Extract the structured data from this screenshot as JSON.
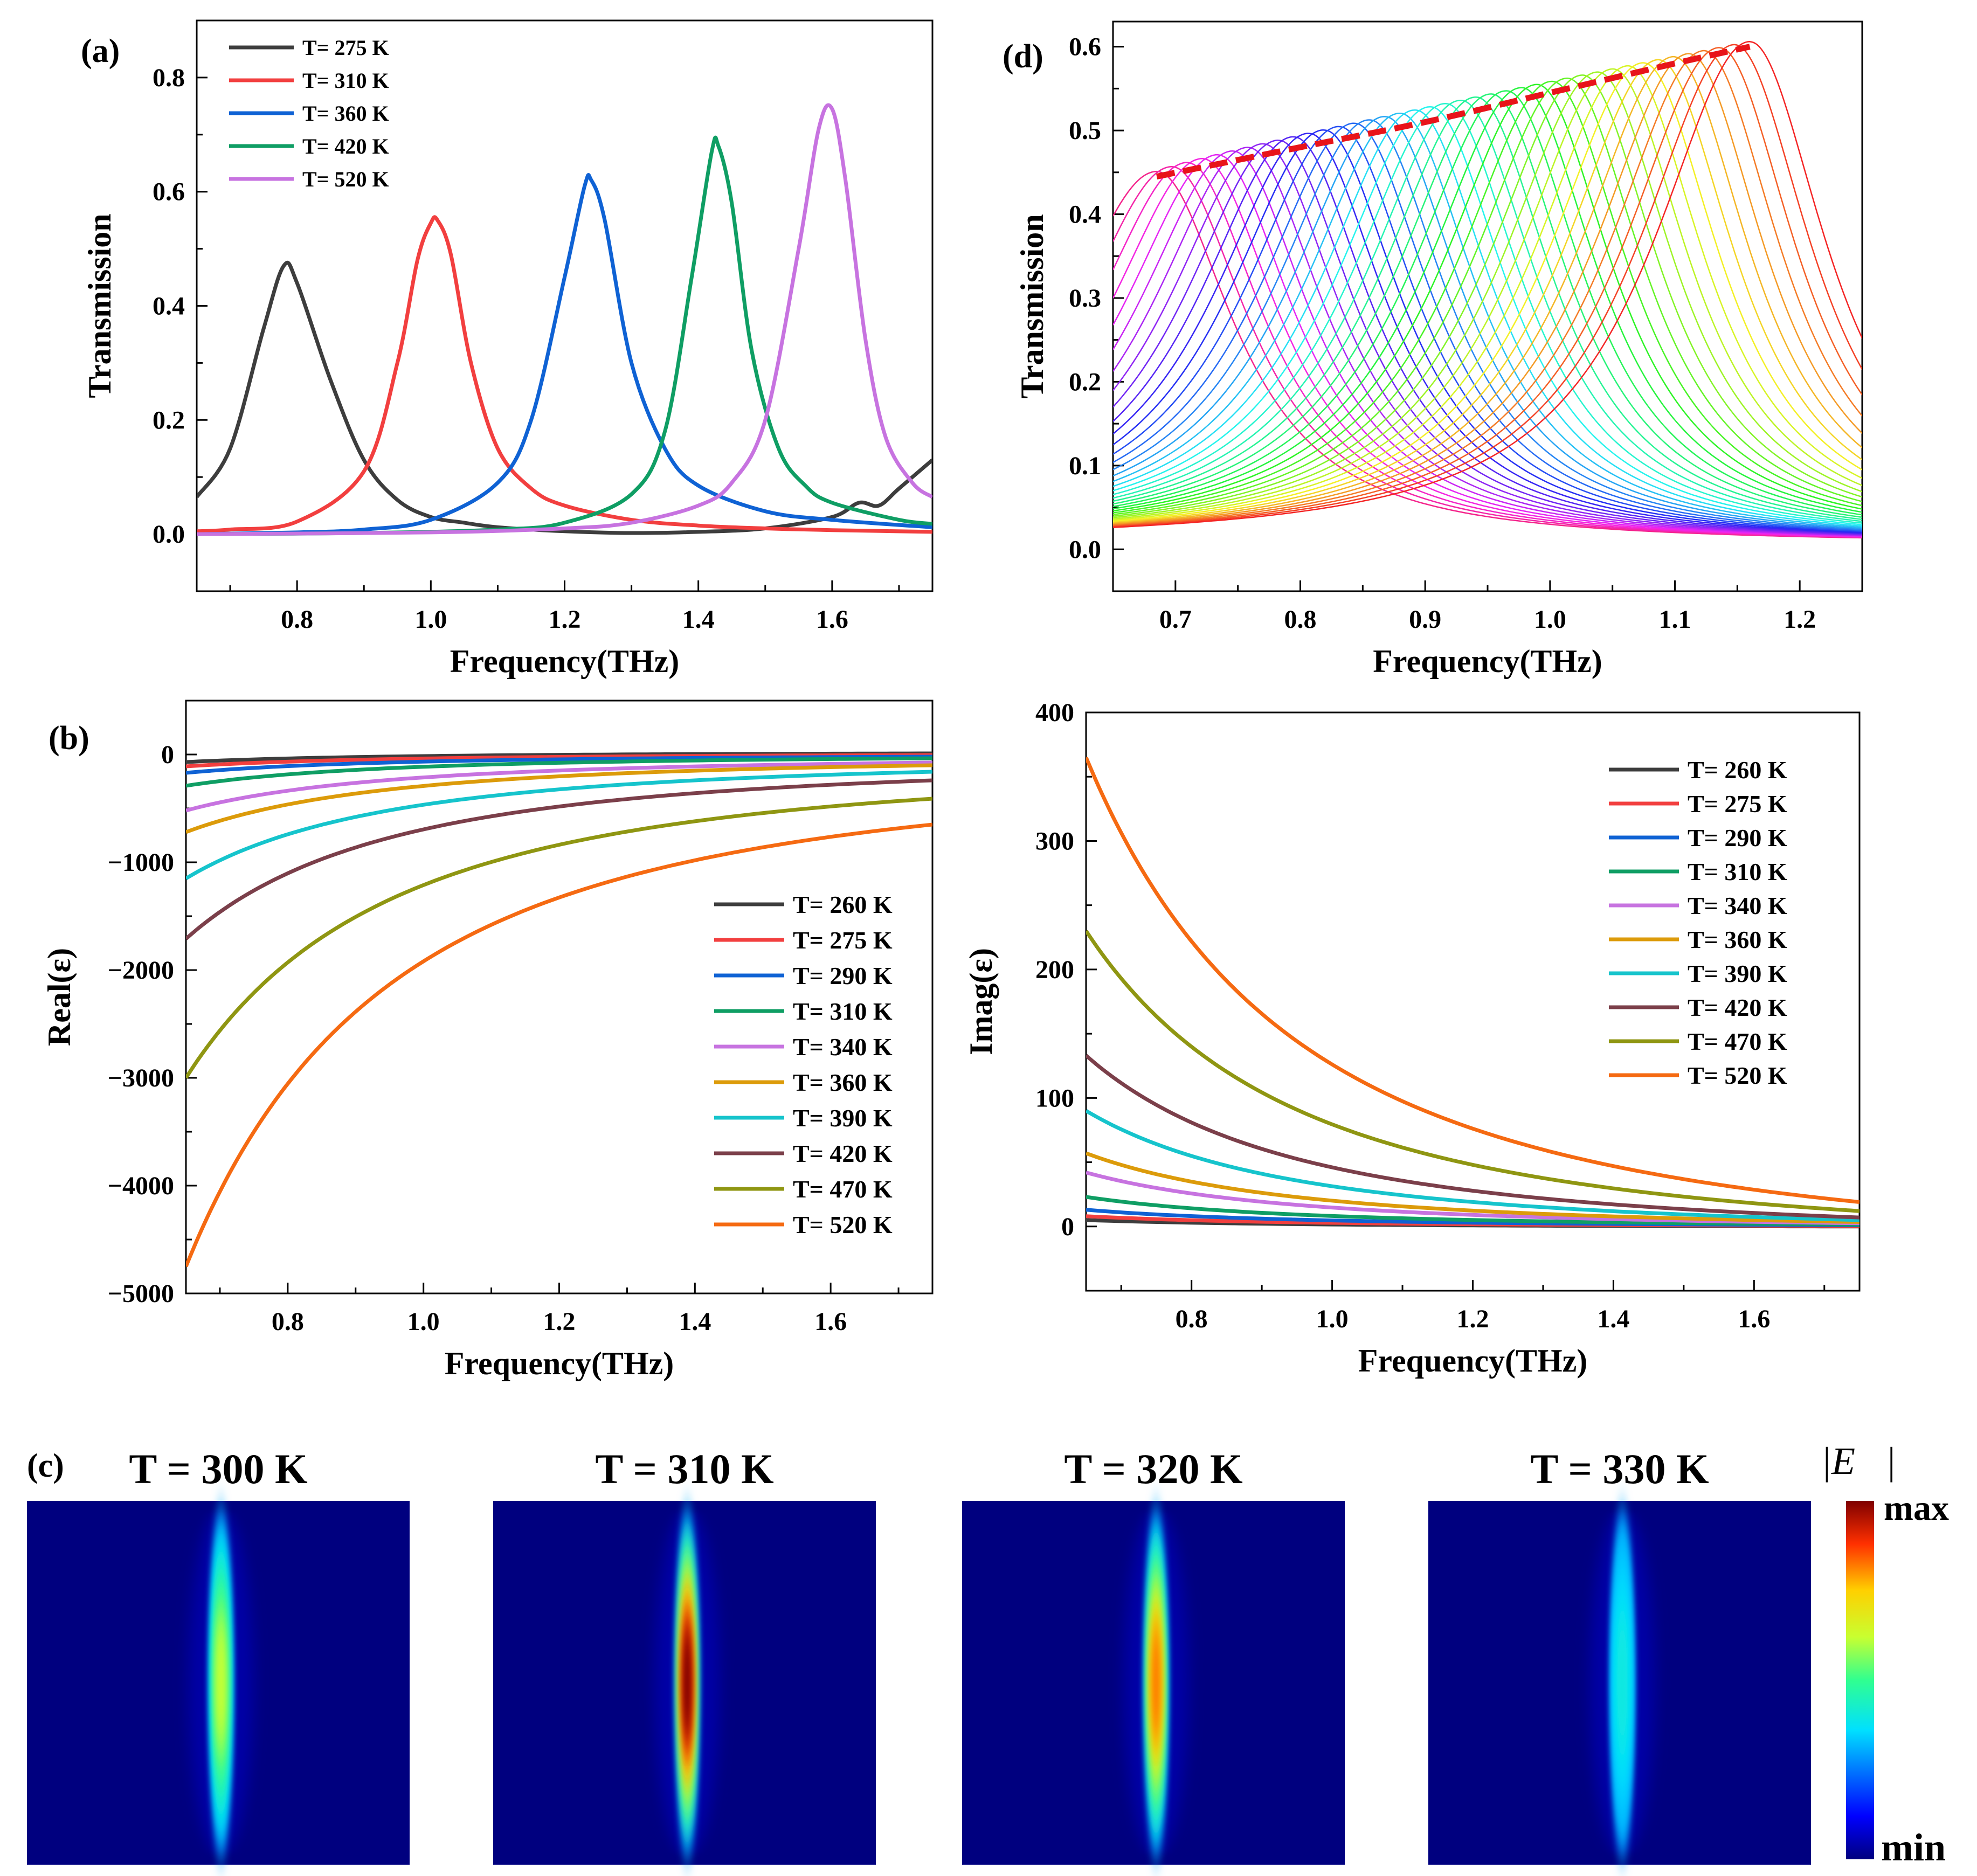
{
  "figure": {
    "panel_labels": {
      "a": "(a)",
      "b": "(b)",
      "c": "(c)",
      "d": "(d)"
    }
  },
  "chart_data": [
    {
      "id": "a",
      "type": "line",
      "xlabel": "Frequency(THz)",
      "ylabel": "Transmission",
      "xlim": [
        0.65,
        1.75
      ],
      "ylim": [
        -0.1,
        0.9
      ],
      "xticks": [
        0.8,
        1.0,
        1.2,
        1.4,
        1.6
      ],
      "yticks": [
        0.0,
        0.2,
        0.4,
        0.6,
        0.8
      ],
      "xtick_labels": [
        "0.8",
        "1.0",
        "1.2",
        "1.4",
        "1.6"
      ],
      "ytick_labels": [
        "0.0",
        "0.2",
        "0.4",
        "0.6",
        "0.8"
      ],
      "legend": "top-left",
      "series": [
        {
          "name": "T= 275 K",
          "color": "#3d3d3d",
          "x": [
            0.65,
            0.7,
            0.75,
            0.78,
            0.8,
            0.85,
            0.9,
            0.95,
            1.0,
            1.05,
            1.1,
            1.2,
            1.3,
            1.4,
            1.5,
            1.6,
            1.64,
            1.67,
            1.7,
            1.75
          ],
          "y": [
            0.065,
            0.15,
            0.36,
            0.47,
            0.44,
            0.27,
            0.13,
            0.06,
            0.03,
            0.02,
            0.012,
            0.005,
            0.002,
            0.004,
            0.01,
            0.03,
            0.055,
            0.05,
            0.08,
            0.13
          ]
        },
        {
          "name": "T= 310 K",
          "color": "#f23f3f",
          "x": [
            0.65,
            0.7,
            0.8,
            0.9,
            0.95,
            0.98,
            1.0,
            1.01,
            1.03,
            1.06,
            1.1,
            1.15,
            1.2,
            1.3,
            1.4,
            1.5,
            1.6,
            1.75
          ],
          "y": [
            0.005,
            0.008,
            0.022,
            0.11,
            0.3,
            0.48,
            0.545,
            0.55,
            0.49,
            0.3,
            0.15,
            0.08,
            0.05,
            0.025,
            0.015,
            0.01,
            0.007,
            0.004
          ]
        },
        {
          "name": "T= 360 K",
          "color": "#0f62d4",
          "x": [
            0.65,
            0.8,
            0.9,
            1.0,
            1.1,
            1.15,
            1.2,
            1.23,
            1.24,
            1.26,
            1.3,
            1.35,
            1.4,
            1.5,
            1.6,
            1.75
          ],
          "y": [
            0.0,
            0.003,
            0.008,
            0.025,
            0.09,
            0.2,
            0.45,
            0.61,
            0.62,
            0.55,
            0.3,
            0.15,
            0.085,
            0.04,
            0.025,
            0.012
          ]
        },
        {
          "name": "T= 420 K",
          "color": "#0f9e64",
          "x": [
            0.65,
            0.9,
            1.1,
            1.2,
            1.3,
            1.35,
            1.39,
            1.42,
            1.43,
            1.45,
            1.48,
            1.52,
            1.56,
            1.6,
            1.7,
            1.75
          ],
          "y": [
            0.0,
            0.002,
            0.008,
            0.02,
            0.07,
            0.18,
            0.45,
            0.67,
            0.68,
            0.58,
            0.32,
            0.15,
            0.085,
            0.055,
            0.025,
            0.018
          ]
        },
        {
          "name": "T= 520 K",
          "color": "#c773e0",
          "x": [
            0.65,
            1.0,
            1.2,
            1.3,
            1.4,
            1.45,
            1.5,
            1.55,
            1.58,
            1.6,
            1.62,
            1.65,
            1.68,
            1.72,
            1.75
          ],
          "y": [
            0.0,
            0.003,
            0.01,
            0.02,
            0.05,
            0.09,
            0.2,
            0.5,
            0.71,
            0.745,
            0.62,
            0.34,
            0.17,
            0.09,
            0.065
          ]
        }
      ]
    },
    {
      "id": "b",
      "type": "line",
      "xlabel": "Frequency(THz)",
      "ylabel": "Real(ε)",
      "xlim": [
        0.65,
        1.75
      ],
      "ylim": [
        -5000,
        500
      ],
      "xticks": [
        0.8,
        1.0,
        1.2,
        1.4,
        1.6
      ],
      "yticks": [
        0,
        -1000,
        -2000,
        -3000,
        -4000,
        -5000
      ],
      "xtick_labels": [
        "0.8",
        "1.0",
        "1.2",
        "1.4",
        "1.6"
      ],
      "ytick_labels": [
        "0",
        "−1000",
        "−2000",
        "−3000",
        "−4000",
        "−5000"
      ],
      "legend": "bottom-right",
      "series": [
        {
          "name": "T= 260 K",
          "color": "#3d3d3d",
          "y0": -70,
          "yend": 10
        },
        {
          "name": "T= 275 K",
          "color": "#f23f3f",
          "y0": -110,
          "yend": -5
        },
        {
          "name": "T= 290 K",
          "color": "#0f62d4",
          "y0": -170,
          "yend": -20
        },
        {
          "name": "T= 310 K",
          "color": "#0f9e64",
          "y0": -290,
          "yend": -35
        },
        {
          "name": "T= 340 K",
          "color": "#c773e0",
          "y0": -520,
          "yend": -75
        },
        {
          "name": "T= 360 K",
          "color": "#dc9b0a",
          "y0": -720,
          "yend": -100
        },
        {
          "name": "T= 390 K",
          "color": "#16c4cc",
          "y0": -1150,
          "yend": -160
        },
        {
          "name": "T= 420 K",
          "color": "#7b3f4a",
          "y0": -1710,
          "yend": -240
        },
        {
          "name": "T= 470 K",
          "color": "#8f9612",
          "y0": -3000,
          "yend": -410
        },
        {
          "name": "T= 520 K",
          "color": "#f56a12",
          "y0": -4750,
          "yend": -650
        }
      ]
    },
    {
      "id": "c",
      "type": "heatmap",
      "panels": [
        {
          "title": "T = 300 K",
          "peak": 0.62
        },
        {
          "title": "T = 310 K",
          "peak": 1.0
        },
        {
          "title": "T = 320 K",
          "peak": 0.82
        },
        {
          "title": "T = 330 K",
          "peak": 0.4
        }
      ],
      "colorbar": {
        "label": "|E⃗|",
        "max_label": "max",
        "min_label": "min"
      }
    },
    {
      "id": "d",
      "type": "line",
      "xlabel": "Frequency(THz)",
      "ylabel": "Transmission",
      "xlim": [
        0.65,
        1.25
      ],
      "ylim": [
        -0.05,
        0.63
      ],
      "xticks": [
        0.7,
        0.8,
        0.9,
        1.0,
        1.1,
        1.2
      ],
      "yticks": [
        0.0,
        0.1,
        0.2,
        0.3,
        0.4,
        0.5,
        0.6
      ],
      "xtick_labels": [
        "0.7",
        "0.8",
        "0.9",
        "1.0",
        "1.1",
        "1.2"
      ],
      "ytick_labels": [
        "0.0",
        "0.1",
        "0.2",
        "0.3",
        "0.4",
        "0.5",
        "0.6"
      ],
      "peak_count": 40,
      "peak_freq_range": [
        0.685,
        1.16
      ],
      "peak_height_range": [
        0.445,
        0.6
      ],
      "envelope": {
        "color": "#e8141a",
        "style": "dashed",
        "x": [
          0.685,
          0.8,
          0.9,
          1.0,
          1.1,
          1.16
        ],
        "y": [
          0.445,
          0.48,
          0.51,
          0.545,
          0.58,
          0.6
        ]
      }
    },
    {
      "id": "e",
      "type": "line",
      "xlabel": "Frequency(THz)",
      "ylabel": "Imag(ε)",
      "xlim": [
        0.65,
        1.75
      ],
      "ylim": [
        -50,
        400
      ],
      "xticks": [
        0.8,
        1.0,
        1.2,
        1.4,
        1.6
      ],
      "yticks": [
        0,
        100,
        200,
        300,
        400
      ],
      "xtick_labels": [
        "0.8",
        "1.0",
        "1.2",
        "1.4",
        "1.6"
      ],
      "ytick_labels": [
        "0",
        "100",
        "200",
        "300",
        "400"
      ],
      "legend": "top-right",
      "series": [
        {
          "name": "T= 260 K",
          "color": "#3d3d3d",
          "y0": 5,
          "yend": 0
        },
        {
          "name": "T= 275 K",
          "color": "#f23f3f",
          "y0": 8,
          "yend": 0.5
        },
        {
          "name": "T= 290 K",
          "color": "#0f62d4",
          "y0": 13,
          "yend": 1
        },
        {
          "name": "T= 310 K",
          "color": "#0f9e64",
          "y0": 23,
          "yend": 1.5
        },
        {
          "name": "T= 340 K",
          "color": "#c773e0",
          "y0": 42,
          "yend": 2.5
        },
        {
          "name": "T= 360 K",
          "color": "#dc9b0a",
          "y0": 57,
          "yend": 3.5
        },
        {
          "name": "T= 390 K",
          "color": "#16c4cc",
          "y0": 90,
          "yend": 5
        },
        {
          "name": "T= 420 K",
          "color": "#7b3f4a",
          "y0": 133,
          "yend": 7
        },
        {
          "name": "T= 470 K",
          "color": "#8f9612",
          "y0": 230,
          "yend": 12
        },
        {
          "name": "T= 520 K",
          "color": "#f56a12",
          "y0": 365,
          "yend": 19
        }
      ]
    }
  ]
}
